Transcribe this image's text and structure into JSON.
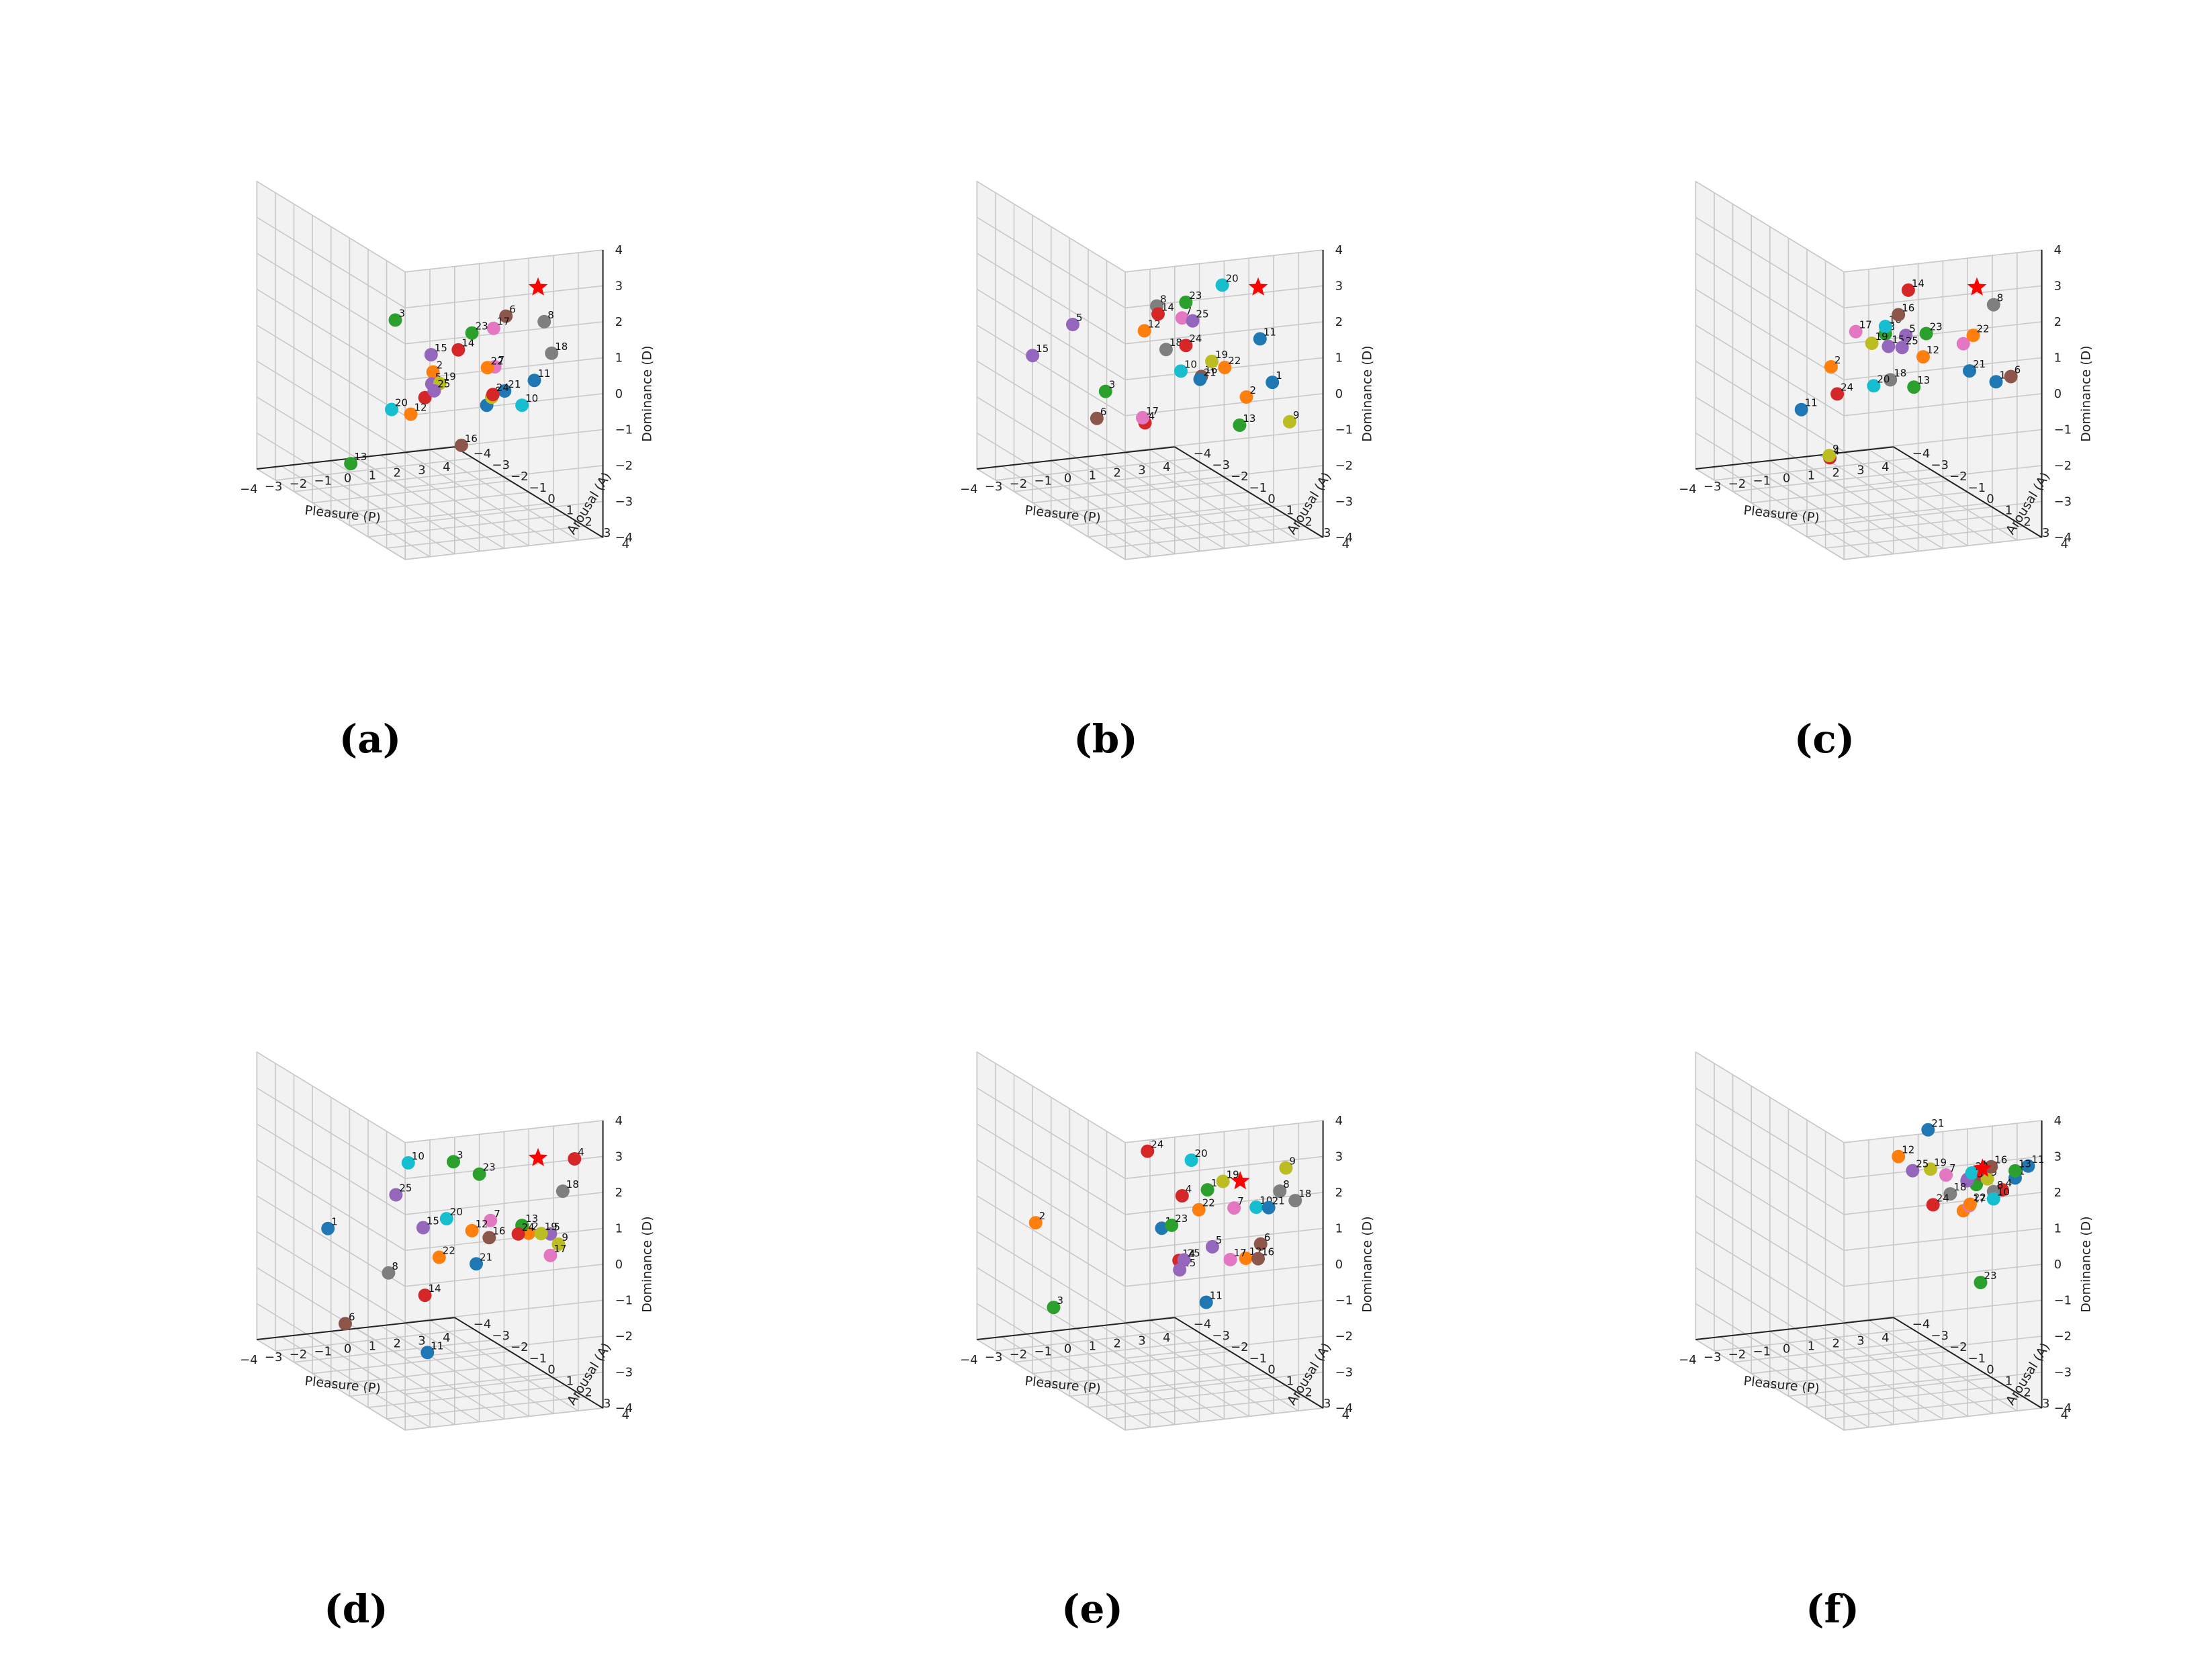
{
  "figure": {
    "axis_labels": {
      "x": "Pleasure (P)",
      "y": "Arousal (A)",
      "z": "Dominance (D)"
    },
    "ticks": [
      "−4",
      "−3",
      "−2",
      "−1",
      "0",
      "1",
      "2",
      "3",
      "4"
    ],
    "colors": [
      "#1f77b4",
      "#ff7f0e",
      "#2ca02c",
      "#d62728",
      "#9467bd",
      "#8c564b",
      "#e377c2",
      "#7f7f7f",
      "#bcbd22",
      "#17becf"
    ],
    "star_color": "#ff0000"
  },
  "chart_data": [
    {
      "type": "scatter",
      "caption": "(a)",
      "xlabel": "Pleasure (P)",
      "ylabel": "Arousal (A)",
      "zlabel": "Dominance (D)",
      "xlim": [
        -4,
        4
      ],
      "ylim": [
        -4,
        4
      ],
      "zlim": [
        -4,
        4
      ],
      "target": {
        "marker": "star",
        "p": 2.5,
        "a": 2.5,
        "d": 2.6
      },
      "points": [
        {
          "label": "1",
          "p": 2.6,
          "a": -0.4,
          "d": -1.6
        },
        {
          "label": "2",
          "p": -1.0,
          "a": 1.5,
          "d": 0.2
        },
        {
          "label": "3",
          "p": -2.0,
          "a": 0.8,
          "d": 1.5
        },
        {
          "label": "4",
          "p": -0.5,
          "a": 0.4,
          "d": -0.9
        },
        {
          "label": "5",
          "p": -0.3,
          "a": 0.5,
          "d": -0.5
        },
        {
          "label": "6",
          "p": 1.2,
          "a": 2.5,
          "d": 1.9
        },
        {
          "label": "7",
          "p": 1.2,
          "a": 1.9,
          "d": 0.3
        },
        {
          "label": "8",
          "p": 2.0,
          "a": 3.5,
          "d": 2.0
        },
        {
          "label": "9",
          "p": 1.0,
          "a": 2.0,
          "d": -0.5
        },
        {
          "label": "10",
          "p": 3.2,
          "a": 0.7,
          "d": -1.3
        },
        {
          "label": "11",
          "p": 2.8,
          "a": 1.9,
          "d": -0.2
        },
        {
          "label": "12",
          "p": -0.1,
          "a": -0.9,
          "d": -1.8
        },
        {
          "label": "13",
          "p": -2.3,
          "a": -1.2,
          "d": -3.1
        },
        {
          "label": "14",
          "p": 0.1,
          "a": 1.4,
          "d": 0.7
        },
        {
          "label": "15",
          "p": -0.7,
          "a": 1.0,
          "d": 0.5
        },
        {
          "label": "16",
          "p": 1.5,
          "a": -0.3,
          "d": -2.6
        },
        {
          "label": "17",
          "p": 0.7,
          "a": 2.5,
          "d": 1.6
        },
        {
          "label": "18",
          "p": 2.9,
          "a": 2.7,
          "d": 0.8
        },
        {
          "label": "19",
          "p": -0.2,
          "a": 0.8,
          "d": -0.4
        },
        {
          "label": "20",
          "p": -1.7,
          "a": 0.2,
          "d": -1.2
        },
        {
          "label": "21",
          "p": 2.2,
          "a": 1.1,
          "d": -0.7
        },
        {
          "label": "22",
          "p": 0.9,
          "a": 1.9,
          "d": 0.3
        },
        {
          "label": "23",
          "p": 0.5,
          "a": 1.6,
          "d": 1.2
        },
        {
          "label": "24",
          "p": 1.2,
          "a": 1.8,
          "d": -0.5
        },
        {
          "label": "25",
          "p": -0.2,
          "a": 0.5,
          "d": -0.7
        }
      ]
    },
    {
      "type": "scatter",
      "caption": "(b)",
      "xlabel": "Pleasure (P)",
      "ylabel": "Arousal (A)",
      "zlabel": "Dominance (D)",
      "xlim": [
        -4,
        4
      ],
      "ylim": [
        -4,
        4
      ],
      "zlim": [
        -4,
        4
      ],
      "target": {
        "marker": "star",
        "p": 2.5,
        "a": 2.5,
        "d": 2.6
      },
      "points": [
        {
          "label": "1",
          "p": 2.7,
          "a": 3.0,
          "d": 0.1
        },
        {
          "label": "2",
          "p": 2.4,
          "a": 2.0,
          "d": -0.6
        },
        {
          "label": "3",
          "p": -1.5,
          "a": -0.4,
          "d": -0.9
        },
        {
          "label": "4",
          "p": -0.5,
          "a": 0.4,
          "d": -1.6
        },
        {
          "label": "5",
          "p": -2.9,
          "a": -0.3,
          "d": 1.1
        },
        {
          "label": "6",
          "p": -1.7,
          "a": -0.6,
          "d": -1.7
        },
        {
          "label": "7",
          "p": 0.4,
          "a": 1.2,
          "d": 1.5
        },
        {
          "label": "8",
          "p": -0.4,
          "a": 0.9,
          "d": 1.8
        },
        {
          "label": "9",
          "p": 3.7,
          "a": 2.6,
          "d": -1.2
        },
        {
          "label": "10",
          "p": 0.2,
          "a": 1.4,
          "d": 0.1
        },
        {
          "label": "11",
          "p": 2.5,
          "a": 2.6,
          "d": 1.2
        },
        {
          "label": "12",
          "p": -0.6,
          "a": 0.5,
          "d": 1.0
        },
        {
          "label": "13",
          "p": 2.2,
          "a": 1.9,
          "d": -1.4
        },
        {
          "label": "14",
          "p": -0.2,
          "a": 0.7,
          "d": 1.5
        },
        {
          "label": "15",
          "p": -4.0,
          "a": -1.0,
          "d": 0.1
        },
        {
          "label": "16",
          "p": 0.8,
          "a": 1.7,
          "d": 0.0
        },
        {
          "label": "17",
          "p": -0.3,
          "a": 0.0,
          "d": -1.6
        },
        {
          "label": "18",
          "p": -0.1,
          "a": 1.0,
          "d": 0.6
        },
        {
          "label": "19",
          "p": 1.0,
          "a": 2.0,
          "d": 0.5
        },
        {
          "label": "20",
          "p": 1.2,
          "a": 2.3,
          "d": 2.7
        },
        {
          "label": "21",
          "p": 0.6,
          "a": 1.9,
          "d": 0.0
        },
        {
          "label": "22",
          "p": 1.3,
          "a": 2.3,
          "d": 0.4
        },
        {
          "label": "23",
          "p": 0.4,
          "a": 1.4,
          "d": 2.0
        },
        {
          "label": "24",
          "p": 0.4,
          "a": 1.4,
          "d": 0.8
        },
        {
          "label": "25",
          "p": 0.6,
          "a": 1.5,
          "d": 1.5
        }
      ]
    },
    {
      "type": "scatter",
      "caption": "(c)",
      "xlabel": "Pleasure (P)",
      "ylabel": "Arousal (A)",
      "zlabel": "Dominance (D)",
      "xlim": [
        -4,
        4
      ],
      "ylim": [
        -4,
        4
      ],
      "zlim": [
        -4,
        4
      ],
      "target": {
        "marker": "star",
        "p": 2.5,
        "a": 2.5,
        "d": 2.6
      },
      "points": [
        {
          "label": "1",
          "p": 2.9,
          "a": 3.0,
          "d": 0.1
        },
        {
          "label": "2",
          "p": -1.3,
          "a": -0.3,
          "d": -0.2
        },
        {
          "label": "3",
          "p": 0.0,
          "a": 0.9,
          "d": 1.0
        },
        {
          "label": "4",
          "p": -0.6,
          "a": -1.3,
          "d": -3.1
        },
        {
          "label": "5",
          "p": 0.6,
          "a": 1.2,
          "d": 1.0
        },
        {
          "label": "6",
          "p": 3.5,
          "a": 3.0,
          "d": 0.2
        },
        {
          "label": "7",
          "p": 2.1,
          "a": 2.3,
          "d": 1.0
        },
        {
          "label": "8",
          "p": 2.5,
          "a": 3.4,
          "d": 2.4
        },
        {
          "label": "9",
          "p": -0.7,
          "a": -1.2,
          "d": -3.0
        },
        {
          "label": "10",
          "p": 0.0,
          "a": 0.9,
          "d": 1.2
        },
        {
          "label": "11",
          "p": -2.5,
          "a": -0.3,
          "d": -1.3
        },
        {
          "label": "12",
          "p": 1.0,
          "a": 1.6,
          "d": 0.5
        },
        {
          "label": "13",
          "p": 1.0,
          "a": 1.1,
          "d": -0.5
        },
        {
          "label": "14",
          "p": 0.4,
          "a": 1.6,
          "d": 2.4
        },
        {
          "label": "15",
          "p": 0.2,
          "a": 0.8,
          "d": 0.6
        },
        {
          "label": "16",
          "p": 0.3,
          "a": 1.2,
          "d": 1.6
        },
        {
          "label": "17",
          "p": -0.9,
          "a": 0.5,
          "d": 1.0
        },
        {
          "label": "18",
          "p": 0.2,
          "a": 0.9,
          "d": -0.3
        },
        {
          "label": "19",
          "p": -0.4,
          "a": 0.7,
          "d": 0.7
        },
        {
          "label": "20",
          "p": -0.1,
          "a": 0.4,
          "d": -0.6
        },
        {
          "label": "21",
          "p": 2.2,
          "a": 2.5,
          "d": 0.3
        },
        {
          "label": "22",
          "p": 2.5,
          "a": 2.3,
          "d": 1.2
        },
        {
          "label": "23",
          "p": 1.2,
          "a": 1.5,
          "d": 1.1
        },
        {
          "label": "24",
          "p": -1.2,
          "a": -0.1,
          "d": -0.9
        },
        {
          "label": "25",
          "p": 0.6,
          "a": 1.0,
          "d": 0.6
        }
      ]
    },
    {
      "type": "scatter",
      "caption": "(d)",
      "xlabel": "Pleasure (P)",
      "ylabel": "Arousal (A)",
      "zlabel": "Dominance (D)",
      "xlim": [
        -4,
        4
      ],
      "ylim": [
        -4,
        4
      ],
      "zlim": [
        -4,
        4
      ],
      "target": {
        "marker": "star",
        "p": 2.5,
        "a": 2.5,
        "d": 2.6
      },
      "points": [
        {
          "label": "1",
          "p": -3.0,
          "a": -1.5,
          "d": -0.2
        },
        {
          "label": "2",
          "p": 2.2,
          "a": 2.4,
          "d": 0.5
        },
        {
          "label": "3",
          "p": 0.2,
          "a": 1.0,
          "d": 2.2
        },
        {
          "label": "4",
          "p": 3.3,
          "a": 3.4,
          "d": 2.8
        },
        {
          "label": "5",
          "p": 2.7,
          "a": 2.9,
          "d": 0.6
        },
        {
          "label": "6",
          "p": -2.3,
          "a": -1.5,
          "d": -2.9
        },
        {
          "label": "7",
          "p": 1.4,
          "a": 1.4,
          "d": 0.6
        },
        {
          "label": "8",
          "p": -1.0,
          "a": -0.9,
          "d": -1.4
        },
        {
          "label": "9",
          "p": 2.8,
          "a": 3.2,
          "d": 0.4
        },
        {
          "label": "10",
          "p": -0.8,
          "a": -0.1,
          "d": 1.9
        },
        {
          "label": "11",
          "p": -0.1,
          "a": 0.0,
          "d": -3.4
        },
        {
          "label": "12",
          "p": 0.8,
          "a": 1.2,
          "d": 0.3
        },
        {
          "label": "13",
          "p": 2.0,
          "a": 2.3,
          "d": 0.7
        },
        {
          "label": "14",
          "p": -0.2,
          "a": 0.0,
          "d": -1.8
        },
        {
          "label": "15",
          "p": -0.5,
          "a": 0.3,
          "d": 0.2
        },
        {
          "label": "16",
          "p": 1.2,
          "a": 1.6,
          "d": 0.2
        },
        {
          "label": "17",
          "p": 2.7,
          "a": 2.9,
          "d": 0.0
        },
        {
          "label": "18",
          "p": 2.9,
          "a": 3.3,
          "d": 1.9
        },
        {
          "label": "19",
          "p": 2.4,
          "a": 2.8,
          "d": 0.6
        },
        {
          "label": "20",
          "p": 0.0,
          "a": 0.9,
          "d": 0.6
        },
        {
          "label": "21",
          "p": 0.9,
          "a": 1.3,
          "d": -0.6
        },
        {
          "label": "22",
          "p": 0.0,
          "a": 0.5,
          "d": -0.6
        },
        {
          "label": "23",
          "p": 0.8,
          "a": 1.6,
          "d": 2.0
        },
        {
          "label": "24",
          "p": 2.0,
          "a": 2.1,
          "d": 0.4
        },
        {
          "label": "25",
          "p": -1.0,
          "a": -0.5,
          "d": 0.9
        }
      ]
    },
    {
      "type": "scatter",
      "caption": "(e)",
      "xlabel": "Pleasure (P)",
      "ylabel": "Arousal (A)",
      "zlabel": "Dominance (D)",
      "xlim": [
        -4,
        4
      ],
      "ylim": [
        -4,
        4
      ],
      "zlim": [
        -4,
        4
      ],
      "target": {
        "marker": "star",
        "p": 2.0,
        "a": 2.2,
        "d": 1.9
      },
      "points": [
        {
          "label": "1",
          "p": -0.5,
          "a": 1.3,
          "d": 0.5
        },
        {
          "label": "2",
          "p": -3.5,
          "a": -1.5,
          "d": 0.0
        },
        {
          "label": "3",
          "p": -3.0,
          "a": -1.2,
          "d": -2.3
        },
        {
          "label": "4",
          "p": 0.4,
          "a": 1.2,
          "d": 1.3
        },
        {
          "label": "5",
          "p": 1.4,
          "a": 1.5,
          "d": -0.1
        },
        {
          "label": "6",
          "p": 2.6,
          "a": 2.5,
          "d": 0.2
        },
        {
          "label": "7",
          "p": 1.9,
          "a": 2.0,
          "d": 1.1
        },
        {
          "label": "8",
          "p": 3.0,
          "a": 3.0,
          "d": 1.8
        },
        {
          "label": "9",
          "p": 3.1,
          "a": 3.2,
          "d": 2.5
        },
        {
          "label": "10",
          "p": 2.5,
          "a": 2.4,
          "d": 1.2
        },
        {
          "label": "11",
          "p": 1.3,
          "a": 1.3,
          "d": -1.7
        },
        {
          "label": "12",
          "p": 2.3,
          "a": 2.1,
          "d": -0.3
        },
        {
          "label": "13",
          "p": 1.2,
          "a": 1.5,
          "d": 1.5
        },
        {
          "label": "14",
          "p": 0.5,
          "a": 0.9,
          "d": -0.6
        },
        {
          "label": "15",
          "p": 0.6,
          "a": 0.8,
          "d": -0.9
        },
        {
          "label": "16",
          "p": 2.5,
          "a": 2.5,
          "d": -0.2
        },
        {
          "label": "17",
          "p": 1.9,
          "a": 1.8,
          "d": -0.4
        },
        {
          "label": "18",
          "p": 3.4,
          "a": 3.3,
          "d": 1.6
        },
        {
          "label": "19",
          "p": 1.6,
          "a": 1.8,
          "d": 1.8
        },
        {
          "label": "20",
          "p": 0.7,
          "a": 1.3,
          "d": 2.3
        },
        {
          "label": "21",
          "p": 2.7,
          "a": 2.8,
          "d": 1.3
        },
        {
          "label": "22",
          "p": 1.0,
          "a": 1.3,
          "d": 0.9
        },
        {
          "label": "23",
          "p": 0.2,
          "a": 0.9,
          "d": 0.4
        },
        {
          "label": "24",
          "p": -0.7,
          "a": 0.8,
          "d": 2.5
        },
        {
          "label": "25",
          "p": 0.7,
          "a": 0.9,
          "d": -0.6
        }
      ]
    },
    {
      "type": "scatter",
      "caption": "(f)",
      "xlabel": "Pleasure (P)",
      "ylabel": "Arousal (A)",
      "zlabel": "Dominance (D)",
      "xlim": [
        -4,
        4
      ],
      "ylim": [
        -4,
        4
      ],
      "zlim": [
        -4,
        4
      ],
      "target": {
        "marker": "star",
        "p": 2.5,
        "a": 2.8,
        "d": 2.4
      },
      "points": [
        {
          "label": "1",
          "p": 3.3,
          "a": 3.5,
          "d": 2.3
        },
        {
          "label": "2",
          "p": 2.1,
          "a": 2.3,
          "d": 1.1
        },
        {
          "label": "3",
          "p": 2.4,
          "a": 2.6,
          "d": 1.9
        },
        {
          "label": "4",
          "p": 3.0,
          "a": 3.2,
          "d": 1.9
        },
        {
          "label": "5",
          "p": 2.2,
          "a": 2.4,
          "d": 2.0
        },
        {
          "label": "6",
          "p": 2.5,
          "a": 2.7,
          "d": 2.2
        },
        {
          "label": "7",
          "p": 1.7,
          "a": 1.9,
          "d": 2.0
        },
        {
          "label": "8",
          "p": 2.8,
          "a": 3.0,
          "d": 1.8
        },
        {
          "label": "9",
          "p": 2.7,
          "a": 2.8,
          "d": 2.1
        },
        {
          "label": "10",
          "p": 2.8,
          "a": 3.0,
          "d": 1.6
        },
        {
          "label": "11",
          "p": 3.6,
          "a": 3.8,
          "d": 2.7
        },
        {
          "label": "12",
          "p": 0.3,
          "a": 1.2,
          "d": 2.4
        },
        {
          "label": "13",
          "p": 3.3,
          "a": 3.5,
          "d": 2.5
        },
        {
          "label": "14",
          "p": 2.4,
          "a": 2.7,
          "d": 2.3
        },
        {
          "label": "15",
          "p": 2.1,
          "a": 2.5,
          "d": 2.0
        },
        {
          "label": "16",
          "p": 2.7,
          "a": 3.0,
          "d": 2.5
        },
        {
          "label": "17",
          "p": 2.2,
          "a": 2.5,
          "d": 1.3
        },
        {
          "label": "18",
          "p": 1.8,
          "a": 2.0,
          "d": 1.5
        },
        {
          "label": "19",
          "p": 1.3,
          "a": 1.6,
          "d": 2.1
        },
        {
          "label": "20",
          "p": 2.3,
          "a": 2.5,
          "d": 2.2
        },
        {
          "label": "21",
          "p": 1.2,
          "a": 1.6,
          "d": 3.2
        },
        {
          "label": "22",
          "p": 2.3,
          "a": 2.4,
          "d": 1.3
        },
        {
          "label": "23",
          "p": 2.5,
          "a": 2.7,
          "d": -0.8
        },
        {
          "label": "24",
          "p": 1.4,
          "a": 1.6,
          "d": 1.1
        },
        {
          "label": "25",
          "p": 0.8,
          "a": 1.3,
          "d": 2.0
        }
      ]
    }
  ]
}
